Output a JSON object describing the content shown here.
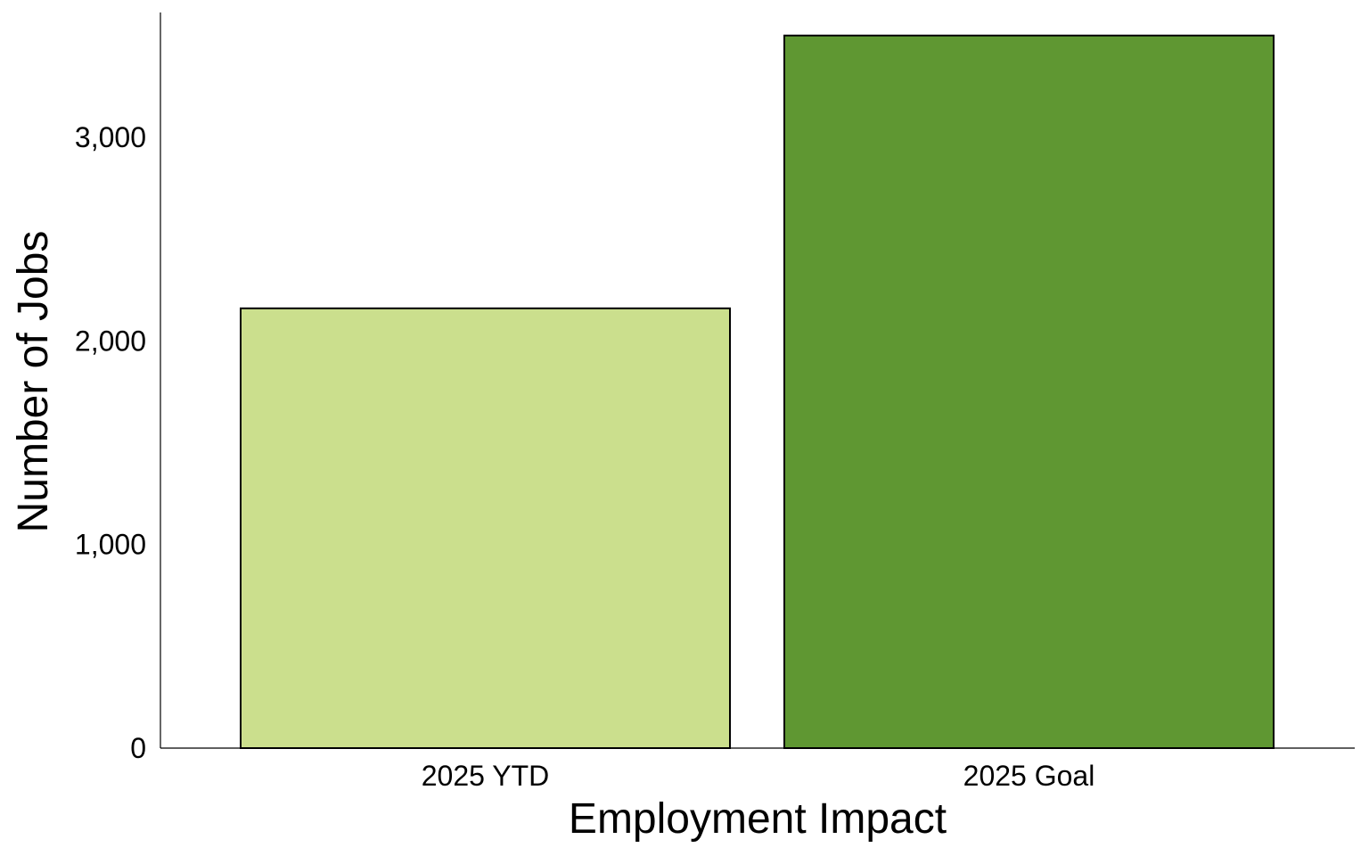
{
  "chart_data": {
    "type": "bar",
    "categories": [
      "2025 YTD",
      "2025 Goal"
    ],
    "values": [
      2160,
      3500
    ],
    "colors": [
      "#cbdf8d",
      "#5f9732"
    ],
    "xlabel": "Employment Impact",
    "ylabel": "Number of Jobs",
    "ylim": [
      0,
      3600
    ],
    "yticks": [
      0,
      1000,
      2000,
      3000
    ],
    "ytick_labels": [
      "0",
      "1,000",
      "2,000",
      "3,000"
    ],
    "grid": false,
    "legend": "none"
  }
}
